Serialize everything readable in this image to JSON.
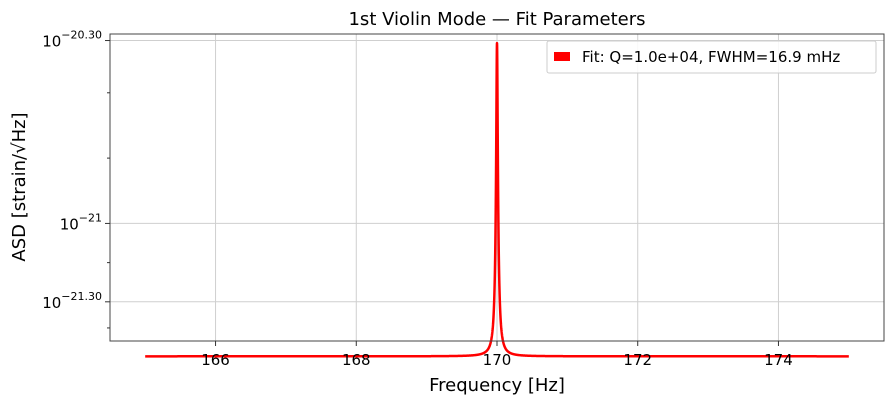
{
  "chart_data": {
    "type": "line",
    "title": "1st Violin Mode — Fit Parameters",
    "xlabel": "Frequency [Hz]",
    "ylabel": "ASD [strain/√Hz]",
    "xlim": [
      164.5,
      175.5
    ],
    "ylim_log10": [
      -21.45,
      -20.275
    ],
    "yscale": "log",
    "grid": true,
    "legend_position": "top-right",
    "x_ticks": [
      166,
      168,
      170,
      172,
      174
    ],
    "x_tick_labels": [
      "166",
      "168",
      "170",
      "172",
      "174"
    ],
    "y_ticks_log10": [
      -20.3,
      -21.0,
      -21.3
    ],
    "y_tick_labels": [
      {
        "base": "10",
        "exp": "−20.30"
      },
      {
        "base": "10",
        "exp": "−21"
      },
      {
        "base": "10",
        "exp": "−21.30"
      }
    ],
    "y_minor_ticks_log10": [
      -20.5,
      -20.75,
      -21.15,
      -21.4
    ],
    "series": [
      {
        "name": "Fit: Q=1.0e+04, FWHM=16.9 mHz",
        "color": "#ff0000",
        "x_range": [
          165,
          175
        ],
        "model": "lorentzian",
        "f0": 170.0,
        "fwhm_hz": 0.0169,
        "peak": 4.9e-21,
        "baseline": 3.1e-22
      }
    ]
  }
}
